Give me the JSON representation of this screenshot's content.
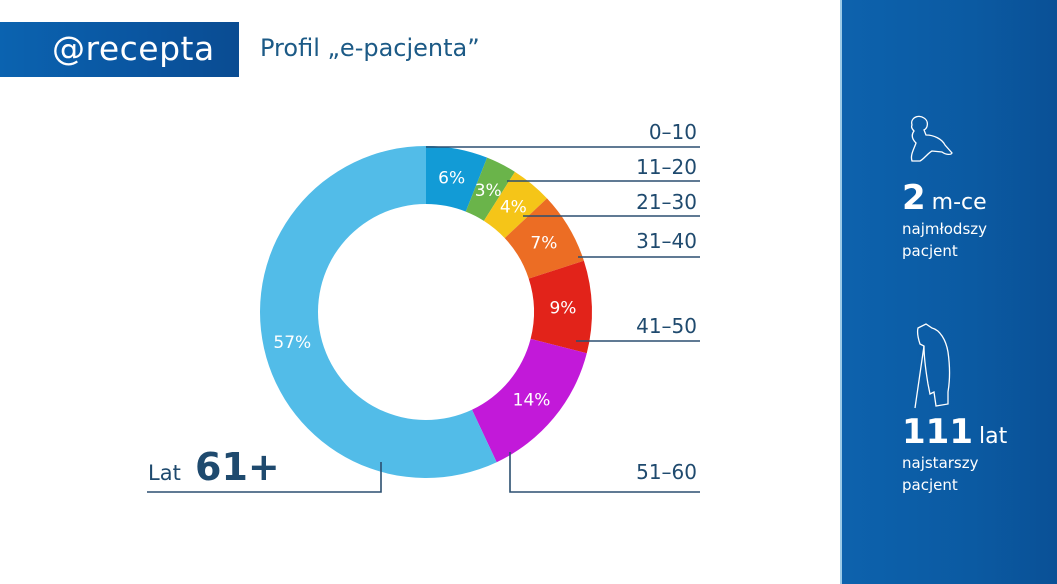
{
  "header": {
    "logo": "@recepta",
    "title": "Profil „e-pacjenta”"
  },
  "side_panel": {
    "youngest": {
      "value": "2",
      "unit": "m-ce",
      "desc_line1": "najmłodszy",
      "desc_line2": "pacjent",
      "icon": "baby-crawling-icon"
    },
    "oldest": {
      "value": "111",
      "unit": "lat",
      "desc_line1": "najstarszy",
      "desc_line2": "pacjent",
      "icon": "elderly-man-cane-icon"
    }
  },
  "chart_data": {
    "type": "pie",
    "variant": "donut",
    "title": "Profil „e-pacjenta”",
    "categories": [
      "0–10",
      "11–20",
      "21–30",
      "31–40",
      "41–50",
      "51–60",
      "61+"
    ],
    "values": [
      6,
      3,
      4,
      7,
      9,
      14,
      57
    ],
    "labels": [
      "6%",
      "3%",
      "4%",
      "7%",
      "9%",
      "14%",
      "57%"
    ],
    "colors": [
      "#129bd6",
      "#6ab44a",
      "#f5c518",
      "#ec6d24",
      "#e2231a",
      "#c219d9",
      "#52bce8"
    ],
    "unit": "%",
    "legend_position": "leader-lines right",
    "annotation_61": {
      "prefix": "Lat",
      "value": "61+"
    }
  }
}
